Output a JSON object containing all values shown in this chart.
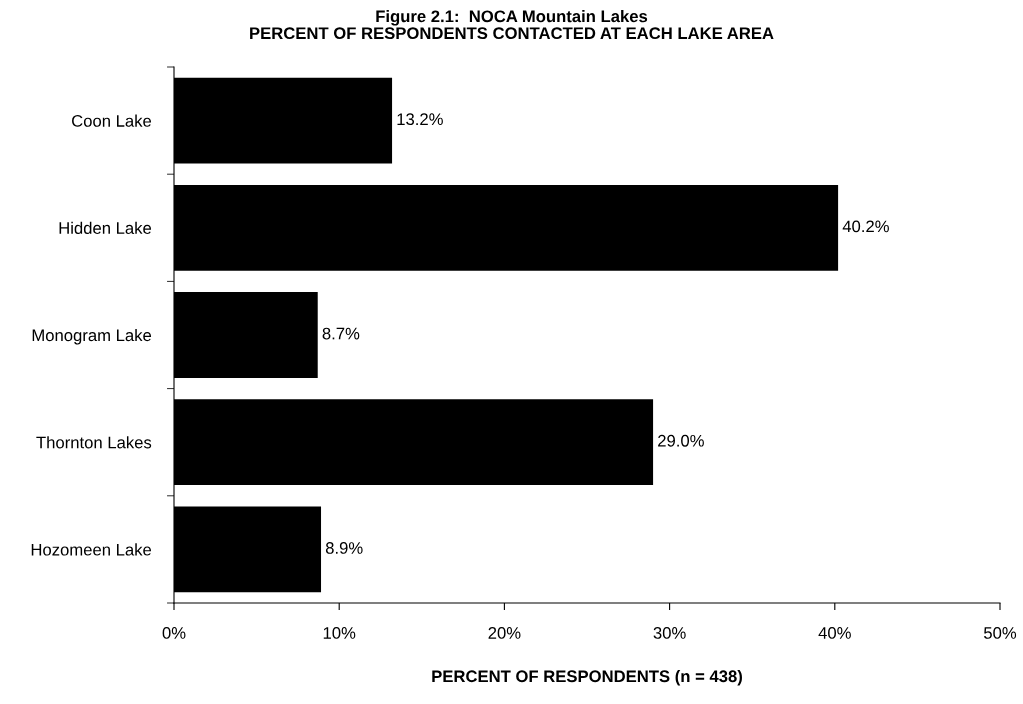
{
  "chart_data": {
    "type": "bar",
    "orientation": "horizontal",
    "title": "Figure 2.1:  NOCA Mountain Lakes\nPERCENT OF RESPONDENTS CONTACTED AT EACH LAKE AREA",
    "xlabel": "PERCENT OF RESPONDENTS (n = 438)",
    "categories": [
      "Coon Lake",
      "Hidden Lake",
      "Monogram Lake",
      "Thornton Lakes",
      "Hozomeen Lake"
    ],
    "values": [
      13.2,
      40.2,
      8.7,
      29.0,
      8.9
    ],
    "value_labels": [
      "13.2%",
      "40.2%",
      "8.7%",
      "29.0%",
      "8.9%"
    ],
    "color": "#000000",
    "xlim": [
      0,
      50
    ],
    "xticks": [
      {
        "value": 0,
        "label": "0%"
      },
      {
        "value": 10,
        "label": "10%"
      },
      {
        "value": 20,
        "label": "20%"
      },
      {
        "value": 30,
        "label": "30%"
      },
      {
        "value": 40,
        "label": "40%"
      },
      {
        "value": 50,
        "label": "50%"
      }
    ],
    "grid": false,
    "legend": false
  }
}
